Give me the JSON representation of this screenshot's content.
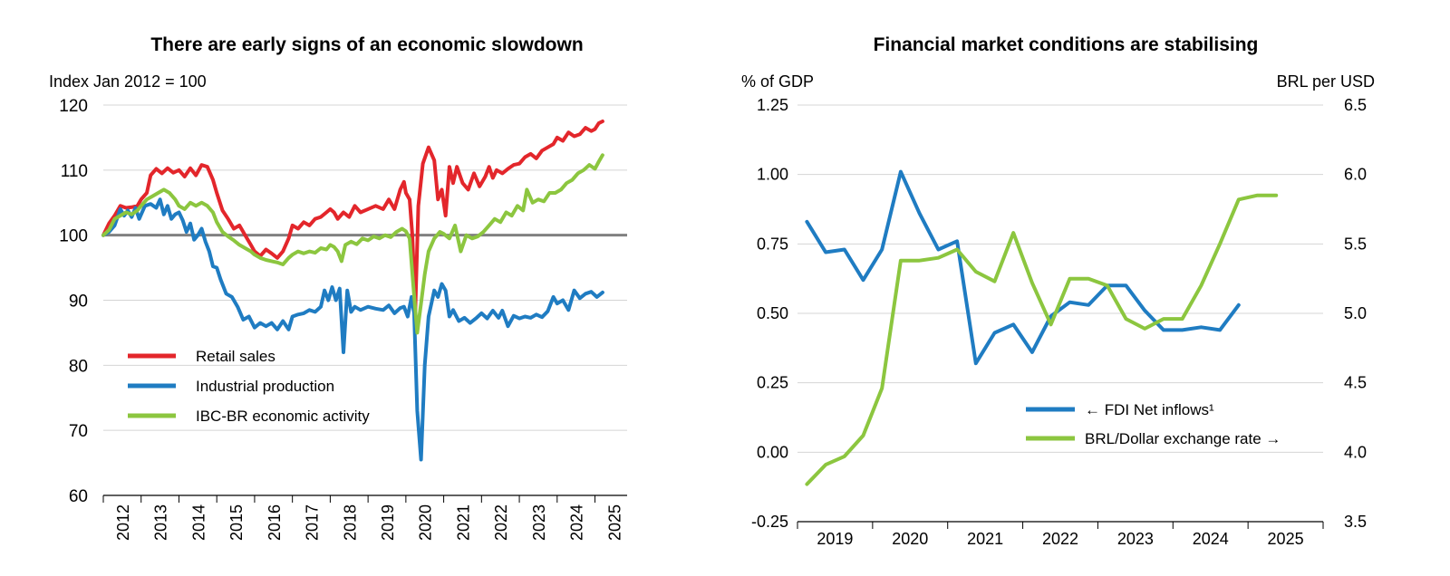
{
  "colors": {
    "retail": "#e3262b",
    "industrial": "#1f7cc2",
    "ibc": "#8cc63f",
    "fdi": "#1f7cc2",
    "brl": "#8cc63f",
    "grid": "#d4d4d4",
    "baseline": "#808080",
    "text": "#000000"
  },
  "chart_data": [
    {
      "type": "line",
      "title": "There are early signs of an economic slowdown",
      "ylabel": "Index Jan 2012 = 100",
      "ylim": [
        60,
        120
      ],
      "yticks": [
        "60",
        "70",
        "80",
        "90",
        "100",
        "110",
        "120"
      ],
      "reference_line": 100,
      "x_range": [
        2012,
        2025.85
      ],
      "xtick_labels": [
        "2012",
        "2013",
        "2014",
        "2015",
        "2016",
        "2017",
        "2018",
        "2019",
        "2020",
        "2021",
        "2022",
        "2023",
        "2024",
        "2025"
      ],
      "legend": [
        "Retail sales",
        "Industrial production",
        "IBC-BR economic activity"
      ],
      "series": [
        {
          "name": "Retail sales",
          "color_key": "retail",
          "x": [
            2012.0,
            2012.15,
            2012.3,
            2012.45,
            2012.6,
            2012.75,
            2012.9,
            2013.0,
            2013.15,
            2013.25,
            2013.4,
            2013.55,
            2013.7,
            2013.85,
            2014.0,
            2014.15,
            2014.3,
            2014.45,
            2014.6,
            2014.75,
            2014.9,
            2015.0,
            2015.15,
            2015.3,
            2015.45,
            2015.6,
            2015.75,
            2015.9,
            2016.0,
            2016.15,
            2016.3,
            2016.45,
            2016.6,
            2016.75,
            2016.9,
            2017.0,
            2017.15,
            2017.3,
            2017.45,
            2017.6,
            2017.75,
            2017.9,
            2018.0,
            2018.1,
            2018.2,
            2018.35,
            2018.5,
            2018.65,
            2018.8,
            2019.0,
            2019.2,
            2019.4,
            2019.55,
            2019.7,
            2019.85,
            2019.95,
            2020.0,
            2020.1,
            2020.17,
            2020.25,
            2020.33,
            2020.45,
            2020.6,
            2020.75,
            2020.85,
            2020.95,
            2021.05,
            2021.15,
            2021.25,
            2021.35,
            2021.5,
            2021.65,
            2021.8,
            2021.95,
            2022.1,
            2022.2,
            2022.3,
            2022.4,
            2022.55,
            2022.7,
            2022.85,
            2023.0,
            2023.15,
            2023.3,
            2023.45,
            2023.6,
            2023.75,
            2023.9,
            2024.0,
            2024.15,
            2024.3,
            2024.45,
            2024.6,
            2024.75,
            2024.9,
            2025.0,
            2025.1,
            2025.2
          ],
          "values": [
            100,
            101.8,
            103,
            104.5,
            104.2,
            104.3,
            104.5,
            105.5,
            106.5,
            109.2,
            110.2,
            109.5,
            110.3,
            109.6,
            110,
            109,
            110.3,
            109.2,
            110.8,
            110.5,
            108.5,
            106.5,
            103.8,
            102.5,
            101,
            101.5,
            100,
            98.5,
            97.5,
            96.8,
            97.8,
            97.2,
            96.5,
            97.5,
            99.5,
            101.5,
            101,
            102,
            101.5,
            102.5,
            102.8,
            103.5,
            104,
            103.5,
            102.5,
            103.5,
            102.8,
            104.5,
            103.5,
            104,
            104.5,
            104,
            105.5,
            104,
            107,
            108.2,
            106.5,
            105.5,
            100,
            88.5,
            104.5,
            111,
            113.5,
            111.5,
            105.5,
            107,
            103,
            110.5,
            108,
            110.5,
            108,
            107,
            109.5,
            107.5,
            109,
            110.5,
            108.8,
            110,
            109.5,
            110.2,
            110.8,
            111,
            112,
            112.5,
            111.8,
            113,
            113.5,
            114,
            115,
            114.5,
            115.8,
            115.2,
            115.5,
            116.5,
            116,
            116.3,
            117.2,
            117.5
          ]
        },
        {
          "name": "Industrial production",
          "color_key": "industrial",
          "x": [
            2012.0,
            2012.15,
            2012.3,
            2012.45,
            2012.55,
            2012.65,
            2012.75,
            2012.85,
            2012.95,
            2013.1,
            2013.25,
            2013.4,
            2013.5,
            2013.6,
            2013.7,
            2013.8,
            2013.9,
            2014.0,
            2014.1,
            2014.2,
            2014.3,
            2014.4,
            2014.5,
            2014.6,
            2014.7,
            2014.8,
            2014.9,
            2015.0,
            2015.1,
            2015.25,
            2015.4,
            2015.55,
            2015.7,
            2015.85,
            2016.0,
            2016.15,
            2016.3,
            2016.45,
            2016.6,
            2016.75,
            2016.9,
            2017.0,
            2017.15,
            2017.3,
            2017.45,
            2017.6,
            2017.75,
            2017.85,
            2017.95,
            2018.05,
            2018.15,
            2018.25,
            2018.35,
            2018.45,
            2018.55,
            2018.65,
            2018.8,
            2019.0,
            2019.2,
            2019.4,
            2019.55,
            2019.7,
            2019.85,
            2019.95,
            2020.05,
            2020.15,
            2020.22,
            2020.3,
            2020.4,
            2020.5,
            2020.6,
            2020.75,
            2020.85,
            2020.95,
            2021.05,
            2021.15,
            2021.25,
            2021.4,
            2021.55,
            2021.7,
            2021.85,
            2022.0,
            2022.15,
            2022.3,
            2022.45,
            2022.55,
            2022.7,
            2022.85,
            2023.0,
            2023.15,
            2023.3,
            2023.45,
            2023.6,
            2023.75,
            2023.9,
            2024.0,
            2024.15,
            2024.3,
            2024.45,
            2024.6,
            2024.75,
            2024.9,
            2025.05,
            2025.2
          ],
          "values": [
            100,
            100.5,
            101.5,
            104,
            103,
            103.8,
            102.8,
            104.2,
            102.5,
            104.5,
            104.8,
            104.2,
            105.5,
            103.2,
            104.5,
            102.5,
            103.2,
            103.5,
            102.3,
            100.5,
            101.8,
            99.3,
            100,
            101,
            99,
            97.5,
            95.2,
            95,
            93.2,
            91,
            90.5,
            89,
            87,
            87.5,
            85.8,
            86.5,
            86,
            86.5,
            85.5,
            86.8,
            85.5,
            87.5,
            87.8,
            88,
            88.5,
            88.2,
            89,
            91.5,
            90,
            92,
            90,
            91.8,
            82,
            91.5,
            88.2,
            89,
            88.5,
            89,
            88.7,
            88.5,
            89.2,
            88,
            88.8,
            89,
            87.5,
            90.5,
            88,
            73,
            65.5,
            80,
            87.5,
            91.5,
            90.5,
            92.5,
            91.5,
            87.5,
            88.5,
            86.8,
            87.3,
            86.5,
            87.2,
            88,
            87.2,
            88.4,
            87.3,
            88.4,
            86,
            87.6,
            87.2,
            87.5,
            87.3,
            87.8,
            87.4,
            88.3,
            90.5,
            89.5,
            90,
            88.5,
            91.5,
            90.3,
            91,
            91.3,
            90.5,
            91.2
          ]
        },
        {
          "name": "IBC-BR economic activity",
          "color_key": "ibc",
          "x": [
            2012.0,
            2012.15,
            2012.3,
            2012.45,
            2012.6,
            2012.75,
            2012.9,
            2013.0,
            2013.15,
            2013.3,
            2013.45,
            2013.6,
            2013.75,
            2013.9,
            2014.0,
            2014.15,
            2014.3,
            2014.45,
            2014.6,
            2014.75,
            2014.9,
            2015.0,
            2015.15,
            2015.3,
            2015.45,
            2015.6,
            2015.75,
            2015.9,
            2016.0,
            2016.15,
            2016.3,
            2016.45,
            2016.6,
            2016.75,
            2016.9,
            2017.0,
            2017.15,
            2017.3,
            2017.45,
            2017.6,
            2017.75,
            2017.9,
            2018.0,
            2018.1,
            2018.2,
            2018.3,
            2018.4,
            2018.55,
            2018.7,
            2018.85,
            2019.0,
            2019.15,
            2019.3,
            2019.45,
            2019.6,
            2019.75,
            2019.9,
            2020.0,
            2020.1,
            2020.2,
            2020.3,
            2020.4,
            2020.5,
            2020.6,
            2020.75,
            2020.9,
            2021.0,
            2021.15,
            2021.3,
            2021.45,
            2021.6,
            2021.75,
            2021.9,
            2022.05,
            2022.2,
            2022.35,
            2022.5,
            2022.65,
            2022.8,
            2022.95,
            2023.1,
            2023.2,
            2023.35,
            2023.5,
            2023.65,
            2023.8,
            2023.95,
            2024.1,
            2024.25,
            2024.4,
            2024.55,
            2024.7,
            2024.85,
            2025.0,
            2025.1,
            2025.2
          ],
          "values": [
            100,
            100.8,
            102.5,
            103,
            103.5,
            103.2,
            103.8,
            104.5,
            105.5,
            106,
            106.5,
            107,
            106.5,
            105.5,
            104.5,
            104,
            105,
            104.5,
            105,
            104.5,
            103.5,
            102,
            100.5,
            99.8,
            99.2,
            98.5,
            98,
            97.5,
            97,
            96.5,
            96.2,
            96,
            95.8,
            95.5,
            96.5,
            97,
            97.5,
            97.2,
            97.5,
            97.3,
            98,
            97.8,
            98.5,
            98.2,
            97.5,
            96,
            98.5,
            99,
            98.6,
            99.5,
            99.2,
            99.8,
            99.5,
            100,
            99.7,
            100.5,
            101,
            100.6,
            99.5,
            92,
            85,
            89.5,
            94,
            97.5,
            99.5,
            100.5,
            100.2,
            99.5,
            101.5,
            97.5,
            100,
            99.5,
            99.8,
            100.5,
            101.5,
            102.5,
            102,
            103.5,
            103,
            104.5,
            103.8,
            107,
            105,
            105.5,
            105.2,
            106.5,
            106.5,
            107,
            108,
            108.5,
            109.5,
            110,
            110.8,
            110.2,
            111.3,
            112.3
          ]
        }
      ]
    },
    {
      "type": "line",
      "title": "Financial market conditions are stabilising",
      "ylabel": "% of GDP",
      "y2label": "BRL per USD",
      "ylim": [
        -0.25,
        1.25
      ],
      "y2lim": [
        3.5,
        6.5
      ],
      "yticks": [
        "-0.25",
        "0.00",
        "0.25",
        "0.50",
        "0.75",
        "1.00",
        "1.25"
      ],
      "y2ticks": [
        "3.5",
        "4.0",
        "4.5",
        "5.0",
        "5.5",
        "6.0",
        "6.5"
      ],
      "x_range": [
        2018.5,
        2025.5
      ],
      "xtick_labels": [
        "2019",
        "2020",
        "2021",
        "2022",
        "2023",
        "2024",
        "2025"
      ],
      "legend": [
        "← FDI Net inflows¹",
        "BRL/Dollar exchange rate →"
      ],
      "series": [
        {
          "name": "← FDI Net inflows¹",
          "axis": "left",
          "color_key": "fdi",
          "x": [
            2018.625,
            2018.875,
            2019.125,
            2019.375,
            2019.625,
            2019.875,
            2020.125,
            2020.375,
            2020.625,
            2020.875,
            2021.125,
            2021.375,
            2021.625,
            2021.875,
            2022.125,
            2022.375,
            2022.625,
            2022.875,
            2023.125,
            2023.375,
            2023.625,
            2023.875,
            2024.125,
            2024.375
          ],
          "values": [
            0.83,
            0.72,
            0.73,
            0.62,
            0.73,
            1.01,
            0.86,
            0.73,
            0.76,
            0.32,
            0.43,
            0.46,
            0.36,
            0.49,
            0.54,
            0.53,
            0.6,
            0.6,
            0.51,
            0.44,
            0.44,
            0.45,
            0.44,
            0.53
          ]
        },
        {
          "name": "BRL/Dollar exchange rate →",
          "axis": "right",
          "color_key": "brl",
          "x": [
            2018.625,
            2018.875,
            2019.125,
            2019.375,
            2019.625,
            2019.875,
            2020.125,
            2020.375,
            2020.625,
            2020.875,
            2021.125,
            2021.375,
            2021.625,
            2021.875,
            2022.125,
            2022.375,
            2022.625,
            2022.875,
            2023.125,
            2023.375,
            2023.625,
            2023.875,
            2024.125,
            2024.375,
            2024.625,
            2024.875
          ],
          "values": [
            3.77,
            3.91,
            3.97,
            4.12,
            4.46,
            5.38,
            5.38,
            5.4,
            5.46,
            5.3,
            5.23,
            5.58,
            5.22,
            4.92,
            5.25,
            5.25,
            5.2,
            4.96,
            4.89,
            4.96,
            4.96,
            5.2,
            5.5,
            5.82,
            5.85,
            5.85
          ]
        }
      ]
    }
  ]
}
